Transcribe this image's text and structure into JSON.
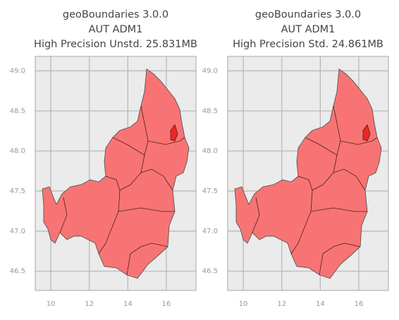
{
  "chart_data": [
    {
      "type": "map",
      "title": [
        "geoBoundaries 3.0.0",
        "AUT ADM1",
        "High Precision Unstd. 25.831MB"
      ],
      "xlim": [
        9.19,
        17.54
      ],
      "ylim": [
        46.26,
        49.18
      ],
      "xticks": [
        10,
        12,
        14,
        16
      ],
      "yticks": [
        {
          "value": 46.5,
          "label": "46.5"
        },
        {
          "value": 47,
          "label": "47.0"
        },
        {
          "value": 47.5,
          "label": "47.5"
        },
        {
          "value": 48,
          "label": "48.0"
        },
        {
          "value": 48.5,
          "label": "48.5"
        },
        {
          "value": 49,
          "label": "49.0"
        }
      ],
      "grid": true,
      "color": "#f87474"
    },
    {
      "type": "map",
      "title": [
        "geoBoundaries 3.0.0",
        "AUT ADM1",
        "High Precision Std. 24.861MB"
      ],
      "xlim": [
        9.19,
        17.54
      ],
      "ylim": [
        46.26,
        49.18
      ],
      "xticks": [
        10,
        12,
        14,
        16
      ],
      "yticks": [
        {
          "value": 46.5,
          "label": "46.5"
        },
        {
          "value": 47,
          "label": "47.0"
        },
        {
          "value": 47.5,
          "label": "47.5"
        },
        {
          "value": 48,
          "label": "48.0"
        },
        {
          "value": 48.5,
          "label": "48.5"
        },
        {
          "value": 49,
          "label": "49.0"
        }
      ],
      "grid": true,
      "color": "#f87474"
    }
  ]
}
